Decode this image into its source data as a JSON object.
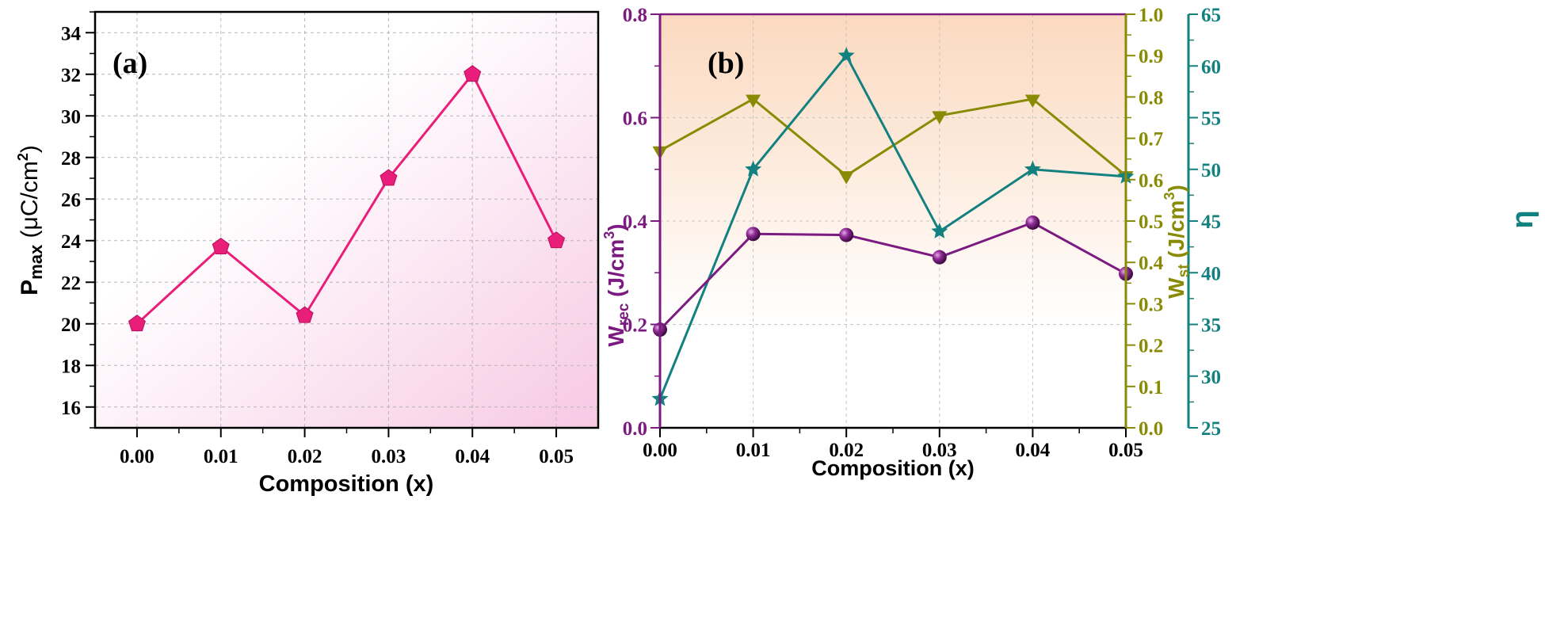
{
  "chart_data": [
    {
      "type": "line",
      "panel_label": "(a)",
      "xlabel": "Composition (x)",
      "ylabel_main": "P",
      "ylabel_sub": "max",
      "ylabel_unit": " (μC/cm",
      "ylabel_sup": "2",
      "ylabel_close": ")",
      "xlim": [
        -0.005,
        0.055
      ],
      "ylim": [
        15,
        35
      ],
      "xticks": [
        "0.00",
        "0.01",
        "0.02",
        "0.03",
        "0.04",
        "0.05"
      ],
      "yticks": [
        "16",
        "18",
        "20",
        "22",
        "24",
        "26",
        "28",
        "30",
        "32",
        "34"
      ],
      "grid": true,
      "marker": "pentagon",
      "colors": {
        "line": "#e91e7a",
        "background_gradient": "#f7c9e4"
      },
      "x": [
        0.0,
        0.01,
        0.02,
        0.03,
        0.04,
        0.05
      ],
      "values": [
        20.0,
        23.7,
        20.4,
        27.0,
        32.0,
        24.0
      ]
    },
    {
      "type": "line",
      "panel_label": "(b)",
      "xlabel": "Composition (x)",
      "xlim": [
        0,
        0.05
      ],
      "xticks": [
        "0.00",
        "0.01",
        "0.02",
        "0.03",
        "0.04",
        "0.05"
      ],
      "grid": true,
      "background_gradient": "#fbd9bf",
      "axes": {
        "left": {
          "label_main": "W",
          "label_sub": "rec",
          "label_unit": " (J/cm",
          "label_sup": "3",
          "label_close": ")",
          "ylim": [
            0,
            0.8
          ],
          "ticks": [
            "0.0",
            "0.2",
            "0.4",
            "0.6",
            "0.8"
          ],
          "color": "#7b1a80"
        },
        "right1": {
          "label_main": "W",
          "label_sub": "st",
          "label_unit": " (J/cm",
          "label_sup": "3",
          "label_close": ")",
          "ylim": [
            0,
            1.0
          ],
          "ticks": [
            "0.0",
            "0.1",
            "0.2",
            "0.3",
            "0.4",
            "0.5",
            "0.6",
            "0.7",
            "0.8",
            "0.9",
            "1.0"
          ],
          "color": "#8a8b05"
        },
        "right2": {
          "label_main": "η",
          "ylim": [
            25,
            65
          ],
          "ticks": [
            "25",
            "30",
            "35",
            "40",
            "45",
            "50",
            "55",
            "60",
            "65"
          ],
          "color": "#13817f"
        }
      },
      "x": [
        0.0,
        0.01,
        0.02,
        0.03,
        0.04,
        0.05
      ],
      "series": [
        {
          "axis": "left",
          "marker": "sphere",
          "color": "#7b1a80",
          "values": [
            0.19,
            0.375,
            0.373,
            0.33,
            0.397,
            0.298
          ]
        },
        {
          "axis": "right1",
          "marker": "triangle",
          "color": "#8a8b05",
          "values": [
            0.67,
            0.795,
            0.61,
            0.755,
            0.795,
            0.61
          ]
        },
        {
          "axis": "right2",
          "marker": "star",
          "color": "#13817f",
          "values": [
            27.8,
            50.0,
            61.0,
            44.0,
            50.0,
            49.3
          ]
        }
      ]
    }
  ]
}
